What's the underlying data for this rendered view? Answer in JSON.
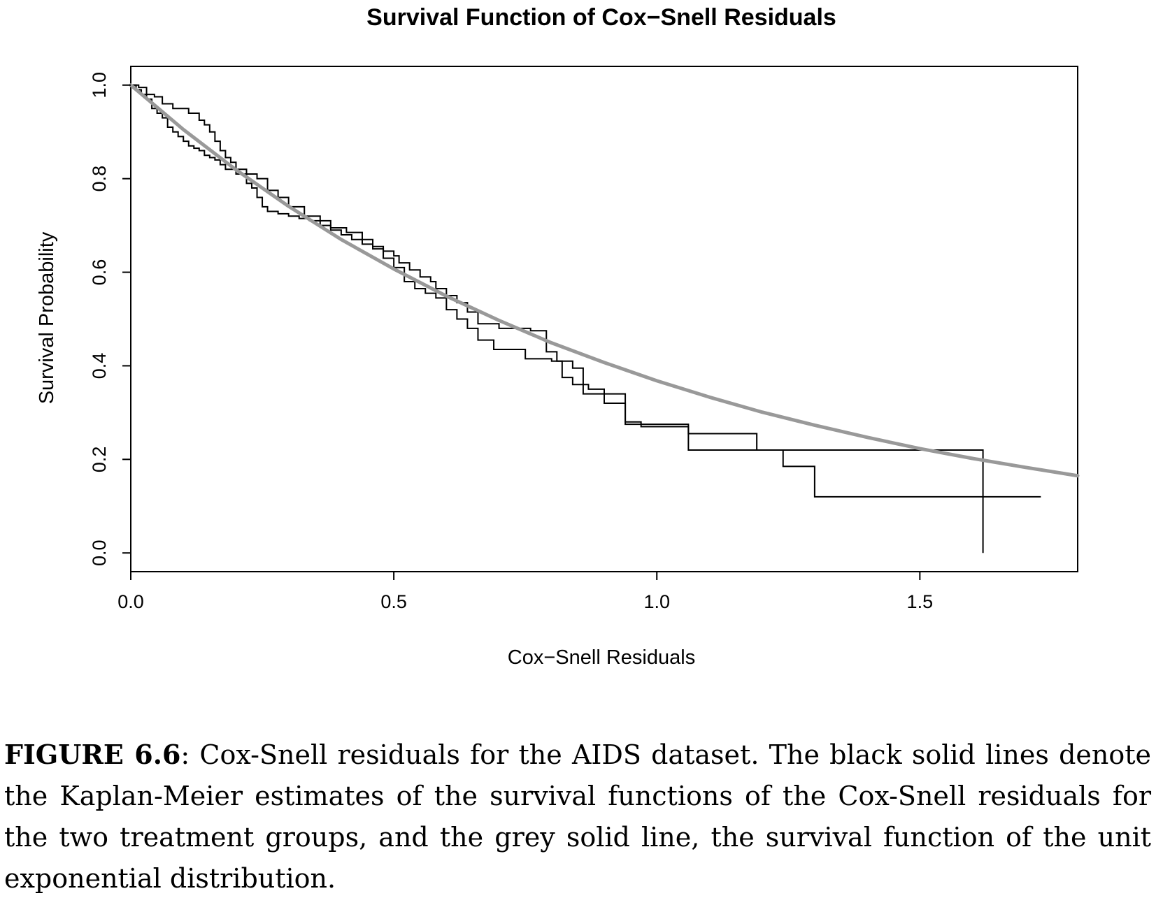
{
  "chart_data": {
    "type": "line",
    "title": "Survival Function of Cox−Snell Residuals",
    "xlabel": "Cox−Snell Residuals",
    "ylabel": "Survival Probability",
    "xlim": [
      0,
      1.8
    ],
    "ylim": [
      -0.04,
      1.04
    ],
    "x_ticks": [
      0,
      0.5,
      1.0,
      1.5
    ],
    "x_tick_labels": [
      "0.0",
      "0.5",
      "1.0",
      "1.5"
    ],
    "y_ticks": [
      0,
      0.2,
      0.4,
      0.6,
      0.8,
      1.0
    ],
    "y_tick_labels": [
      "0.0",
      "0.2",
      "0.4",
      "0.6",
      "0.8",
      "1.0"
    ],
    "grid": false,
    "legend": "none",
    "series": [
      {
        "style": "step",
        "color": "#000000",
        "x": [
          0,
          0.01,
          0.02,
          0.03,
          0.04,
          0.05,
          0.06,
          0.07,
          0.08,
          0.09,
          0.1,
          0.11,
          0.12,
          0.13,
          0.14,
          0.15,
          0.16,
          0.17,
          0.18,
          0.2,
          0.22,
          0.23,
          0.24,
          0.25,
          0.26,
          0.28,
          0.3,
          0.32,
          0.34,
          0.36,
          0.38,
          0.4,
          0.42,
          0.44,
          0.46,
          0.48,
          0.5,
          0.52,
          0.54,
          0.56,
          0.58,
          0.6,
          0.62,
          0.64,
          0.66,
          0.69,
          0.75,
          0.8,
          0.82,
          0.84,
          0.87,
          0.9,
          0.94,
          1.06,
          1.24,
          1.3,
          1.73
        ],
        "y": [
          1.0,
          0.99,
          0.98,
          0.97,
          0.95,
          0.94,
          0.93,
          0.91,
          0.9,
          0.89,
          0.88,
          0.87,
          0.865,
          0.86,
          0.85,
          0.845,
          0.84,
          0.83,
          0.82,
          0.81,
          0.79,
          0.78,
          0.76,
          0.74,
          0.73,
          0.725,
          0.72,
          0.715,
          0.71,
          0.7,
          0.69,
          0.68,
          0.67,
          0.66,
          0.65,
          0.63,
          0.61,
          0.58,
          0.565,
          0.555,
          0.545,
          0.52,
          0.5,
          0.48,
          0.455,
          0.435,
          0.415,
          0.41,
          0.375,
          0.36,
          0.35,
          0.32,
          0.275,
          0.22,
          0.185,
          0.12,
          0.12
        ]
      },
      {
        "style": "step",
        "color": "#000000",
        "x": [
          0,
          0.015,
          0.03,
          0.045,
          0.06,
          0.08,
          0.11,
          0.13,
          0.14,
          0.15,
          0.16,
          0.17,
          0.18,
          0.19,
          0.2,
          0.22,
          0.24,
          0.26,
          0.28,
          0.3,
          0.33,
          0.36,
          0.38,
          0.41,
          0.44,
          0.46,
          0.48,
          0.5,
          0.51,
          0.53,
          0.55,
          0.57,
          0.58,
          0.6,
          0.62,
          0.64,
          0.66,
          0.7,
          0.76,
          0.79,
          0.81,
          0.84,
          0.86,
          0.94,
          0.97,
          1.06,
          1.19,
          1.62
        ],
        "y": [
          1.0,
          0.995,
          0.98,
          0.975,
          0.96,
          0.95,
          0.94,
          0.925,
          0.915,
          0.9,
          0.88,
          0.86,
          0.845,
          0.835,
          0.82,
          0.81,
          0.8,
          0.775,
          0.76,
          0.74,
          0.72,
          0.71,
          0.695,
          0.685,
          0.67,
          0.655,
          0.645,
          0.635,
          0.62,
          0.605,
          0.59,
          0.58,
          0.565,
          0.55,
          0.535,
          0.515,
          0.49,
          0.48,
          0.475,
          0.43,
          0.41,
          0.395,
          0.34,
          0.28,
          0.27,
          0.255,
          0.22,
          0.0
        ]
      },
      {
        "style": "smooth",
        "color": "#999999",
        "x": [
          0,
          0.1,
          0.2,
          0.3,
          0.4,
          0.5,
          0.6,
          0.7,
          0.8,
          0.9,
          1.0,
          1.1,
          1.2,
          1.3,
          1.4,
          1.5,
          1.6,
          1.7,
          1.8
        ],
        "y": [
          1.0,
          0.905,
          0.819,
          0.741,
          0.67,
          0.607,
          0.549,
          0.497,
          0.449,
          0.407,
          0.368,
          0.333,
          0.301,
          0.273,
          0.247,
          0.223,
          0.202,
          0.183,
          0.165
        ]
      }
    ]
  },
  "caption": {
    "label": "FIGURE 6.6",
    "text": ": Cox-Snell residuals for the AIDS dataset. The black solid lines denote the Kaplan-Meier estimates of the survival functions of the Cox-Snell residuals for the two treatment groups, and the grey solid line, the survival function of the unit exponential distribution."
  }
}
